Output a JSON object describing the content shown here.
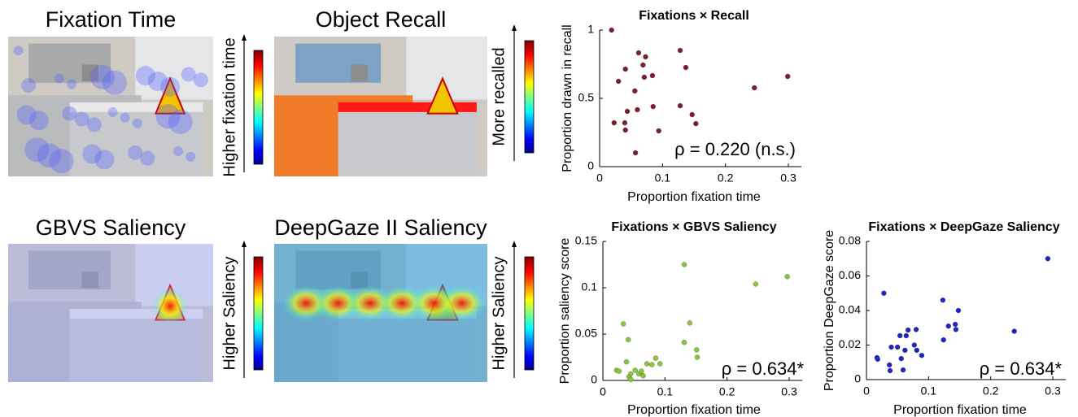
{
  "panels": [
    {
      "title": "Fixation Time",
      "scale_label": "Higher fixation time"
    },
    {
      "title": "Object Recall",
      "scale_label": "More recalled"
    },
    {
      "title": "GBVS Saliency",
      "scale_label": "Higher Saliency"
    },
    {
      "title": "DeepGaze II Saliency",
      "scale_label": "Higher Saliency"
    }
  ],
  "chart_data": [
    {
      "type": "scatter",
      "title": "Fixations × Recall",
      "x_label": "Proportion fixation time",
      "y_label": "Proportion drawn in recall",
      "annotation": "ρ = 0.220 (n.s.)",
      "color": "#7b1f2e",
      "x": [
        0.019,
        0.03,
        0.041,
        0.023,
        0.04,
        0.041,
        0.044,
        0.056,
        0.062,
        0.069,
        0.073,
        0.071,
        0.06,
        0.057,
        0.084,
        0.085,
        0.094,
        0.128,
        0.137,
        0.128,
        0.147,
        0.153,
        0.246,
        0.299
      ],
      "values": [
        1.0,
        0.625,
        0.714,
        0.321,
        0.321,
        0.268,
        0.405,
        0.554,
        0.833,
        0.744,
        0.804,
        0.655,
        0.417,
        0.101,
        0.667,
        0.44,
        0.262,
        0.851,
        0.726,
        0.446,
        0.381,
        0.315,
        0.577,
        0.661
      ],
      "xlim": [
        0,
        0.3
      ],
      "ylim": [
        0,
        1
      ],
      "xticks": [
        0,
        0.1,
        0.2,
        0.3
      ],
      "yticks": [
        0,
        0.5,
        1
      ]
    },
    {
      "type": "scatter",
      "title": "Fixations × GBVS Saliency",
      "x_label": "Proportion fixation time",
      "y_label": "Proportion saliency score",
      "annotation": "ρ = 0.634*",
      "color": "#8cc63f",
      "x": [
        0.022,
        0.026,
        0.033,
        0.042,
        0.045,
        0.052,
        0.058,
        0.062,
        0.065,
        0.071,
        0.079,
        0.085,
        0.092,
        0.041,
        0.038,
        0.131,
        0.131,
        0.14,
        0.151,
        0.152,
        0.246,
        0.297,
        0.045
      ],
      "values": [
        0.011,
        0.01,
        0.061,
        0.004,
        0.007,
        0.011,
        0.007,
        0.01,
        0.005,
        0.018,
        0.017,
        0.024,
        0.018,
        0.044,
        0.02,
        0.125,
        0.041,
        0.062,
        0.033,
        0.025,
        0.104,
        0.112,
        0.001
      ],
      "xlim": [
        0,
        0.3
      ],
      "ylim": [
        0,
        0.15
      ],
      "xticks": [
        0,
        0.1,
        0.2,
        0.3
      ],
      "yticks": [
        0,
        0.05,
        0.1,
        0.15
      ]
    },
    {
      "type": "scatter",
      "title": "Fixations × DeepGaze Saliency",
      "x_label": "Proportion fixation time",
      "y_label": "Proportion DeepGaze score",
      "annotation": "ρ = 0.634*",
      "color": "#1f23c8",
      "x": [
        0.017,
        0.018,
        0.028,
        0.037,
        0.038,
        0.04,
        0.05,
        0.054,
        0.056,
        0.059,
        0.062,
        0.064,
        0.067,
        0.077,
        0.08,
        0.081,
        0.089,
        0.123,
        0.124,
        0.132,
        0.143,
        0.148,
        0.144,
        0.238,
        0.292
      ],
      "values": [
        0.0127,
        0.0118,
        0.05,
        0.0085,
        0.0052,
        0.0188,
        0.0188,
        0.0254,
        0.0122,
        0.0056,
        0.017,
        0.0254,
        0.0287,
        0.02,
        0.029,
        0.017,
        0.014,
        0.046,
        0.023,
        0.031,
        0.032,
        0.04,
        0.029,
        0.028,
        0.07
      ],
      "xlim": [
        0,
        0.3
      ],
      "ylim": [
        0,
        0.08
      ],
      "xticks": [
        0,
        0.1,
        0.2,
        0.3
      ],
      "yticks": [
        0,
        0.02,
        0.04,
        0.06,
        0.08
      ]
    }
  ]
}
